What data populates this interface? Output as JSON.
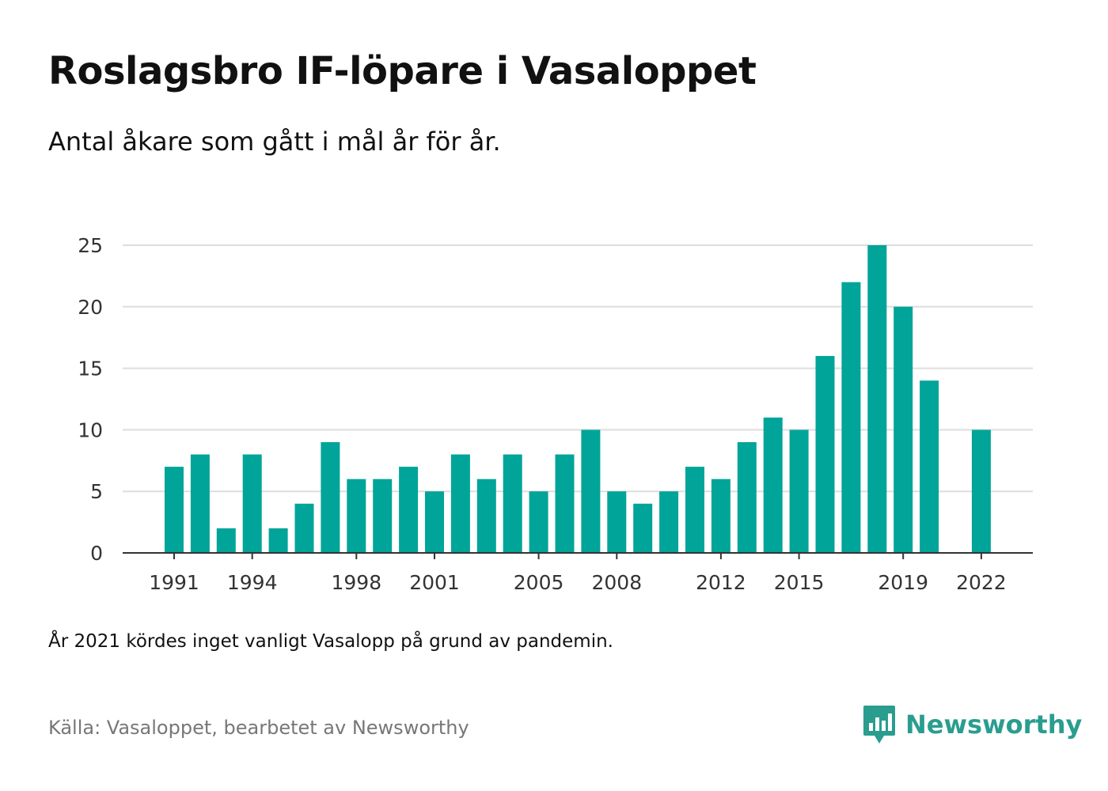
{
  "header": {
    "title": "Roslagsbro IF-löpare i Vasaloppet",
    "subtitle": "Antal åkare som gått i mål år för år."
  },
  "footer": {
    "note": "År 2021 kördes inget vanligt Vasalopp på grund av pandemin.",
    "source": "Källa: Vasaloppet, bearbetet av Newsworthy",
    "brand": "Newsworthy",
    "brand_icon": "newsworthy-logo-icon"
  },
  "colors": {
    "bar": "#00a499",
    "grid": "#dddddd",
    "axis": "#333333",
    "brand": "#2a9d8f"
  },
  "chart_data": {
    "type": "bar",
    "title": "Roslagsbro IF-löpare i Vasaloppet",
    "subtitle": "Antal åkare som gått i mål år för år.",
    "xlabel": "",
    "ylabel": "",
    "categories": [
      1991,
      1992,
      1993,
      1994,
      1995,
      1996,
      1997,
      1998,
      1999,
      2000,
      2001,
      2002,
      2003,
      2004,
      2005,
      2006,
      2007,
      2008,
      2009,
      2010,
      2011,
      2012,
      2013,
      2014,
      2015,
      2016,
      2017,
      2018,
      2019,
      2020,
      2021,
      2022
    ],
    "values": [
      7,
      8,
      2,
      8,
      2,
      4,
      9,
      6,
      6,
      7,
      5,
      8,
      6,
      8,
      5,
      8,
      10,
      5,
      4,
      5,
      7,
      6,
      9,
      11,
      10,
      16,
      22,
      25,
      20,
      14,
      null,
      10
    ],
    "ylim": [
      0,
      25
    ],
    "yticks": [
      0,
      5,
      10,
      15,
      20,
      25
    ],
    "xtick_labels": [
      1991,
      1994,
      1998,
      2001,
      2005,
      2008,
      2012,
      2015,
      2019,
      2022
    ],
    "grid": true,
    "legend": "none"
  }
}
